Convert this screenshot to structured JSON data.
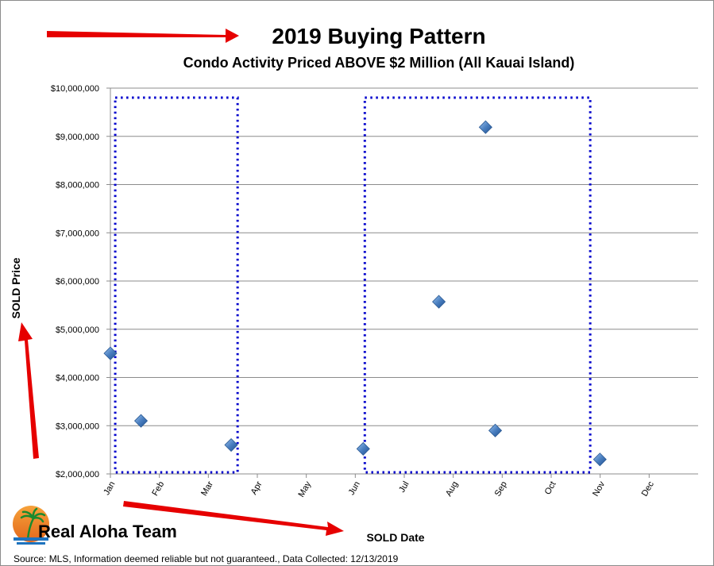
{
  "chart_data": {
    "type": "scatter",
    "title": "2019 Buying Pattern",
    "subtitle": "Condo Activity Priced ABOVE $2 Million (All Kauai Island)",
    "xlabel": "SOLD Date",
    "ylabel": "SOLD Price",
    "x_ticks": [
      "Jan",
      "Feb",
      "Mar",
      "Apr",
      "May",
      "Jun",
      "Jul",
      "Aug",
      "Sep",
      "Oct",
      "Nov",
      "Dec"
    ],
    "y_ticks": [
      "$2,000,000",
      "$3,000,000",
      "$4,000,000",
      "$5,000,000",
      "$6,000,000",
      "$7,000,000",
      "$8,000,000",
      "$9,000,000",
      "$10,000,000"
    ],
    "xlim": [
      "2019-01-01",
      "2019-12-31"
    ],
    "ylim": [
      2000000,
      10000000
    ],
    "grid": true,
    "marker": "diamond",
    "marker_color": "#4a7fc0",
    "series": [
      {
        "points": [
          {
            "x": "2019-01-01",
            "y": 4500000
          },
          {
            "x": "2019-01-20",
            "y": 3100000
          },
          {
            "x": "2019-03-17",
            "y": 2600000
          },
          {
            "x": "2019-06-07",
            "y": 2520000
          },
          {
            "x": "2019-07-24",
            "y": 5570000
          },
          {
            "x": "2019-08-22",
            "y": 9190000
          },
          {
            "x": "2019-08-28",
            "y": 2900000
          },
          {
            "x": "2019-11-01",
            "y": 2300000
          }
        ]
      }
    ],
    "highlight_periods": [
      {
        "from": "2019-01-04",
        "to": "2019-03-21",
        "color": "#0000cc"
      },
      {
        "from": "2019-06-08",
        "to": "2019-10-26",
        "color": "#0000cc"
      }
    ],
    "source": "Source: MLS, Information deemed reliable but not guaranteed., Data Collected: 12/13/2019"
  },
  "logo": {
    "text": "Real Aloha Team",
    "colors": {
      "sun": "#f28c28",
      "water": "#1e73be",
      "palm": "#1a8a2e"
    }
  },
  "colors": {
    "arrow": "#e60000",
    "grid": "#8c8c8c"
  }
}
